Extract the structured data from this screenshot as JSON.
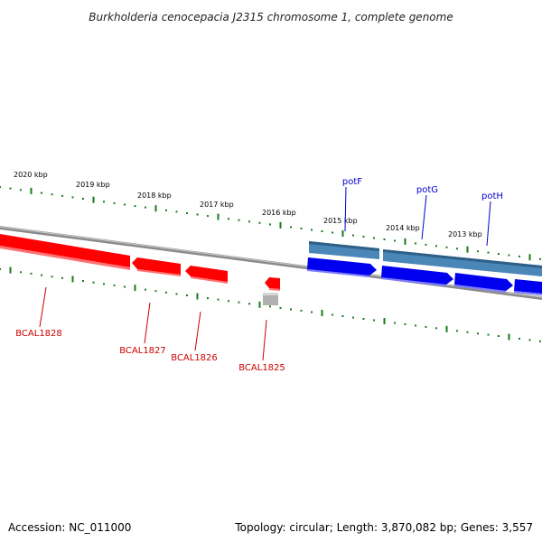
{
  "title": "Burkholderia cenocepacia J2315 chromosome 1, complete genome",
  "footer": {
    "accession": "Accession: NC_011000",
    "topology": "Topology: circular; Length: 3,870,082 bp; Genes: 3,557"
  },
  "colors": {
    "backbone": "#8a8a8a",
    "tick": "#1a7a1a",
    "reverse_gene": "#ff0000",
    "reverse_label": "#cc0000",
    "forward_gene": "#0000ee",
    "forward_label": "#0000cc",
    "forward_band": "#4a86b8",
    "pseudo_gene": "#b0b0b0"
  },
  "tick_labels": [
    "2020 kbp",
    "2019 kbp",
    "2018 kbp",
    "2017 kbp",
    "2016 kbp",
    "2015 kbp",
    "2014 kbp",
    "2013 kbp"
  ],
  "genes_reverse": [
    {
      "label": "BCAL1828"
    },
    {
      "label": "BCAL1827"
    },
    {
      "label": "BCAL1826"
    },
    {
      "label": "BCAL1825"
    }
  ],
  "genes_forward": [
    {
      "label": "potF"
    },
    {
      "label": "potG"
    },
    {
      "label": "potH"
    }
  ]
}
